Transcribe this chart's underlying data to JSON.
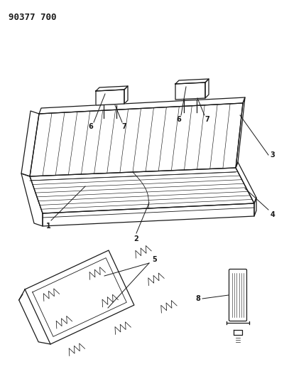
{
  "title": "90377 700",
  "bg_color": "#ffffff",
  "line_color": "#1a1a1a",
  "title_fontsize": 9,
  "label_fontsize": 7,
  "fig_width": 4.07,
  "fig_height": 5.33,
  "dpi": 100
}
